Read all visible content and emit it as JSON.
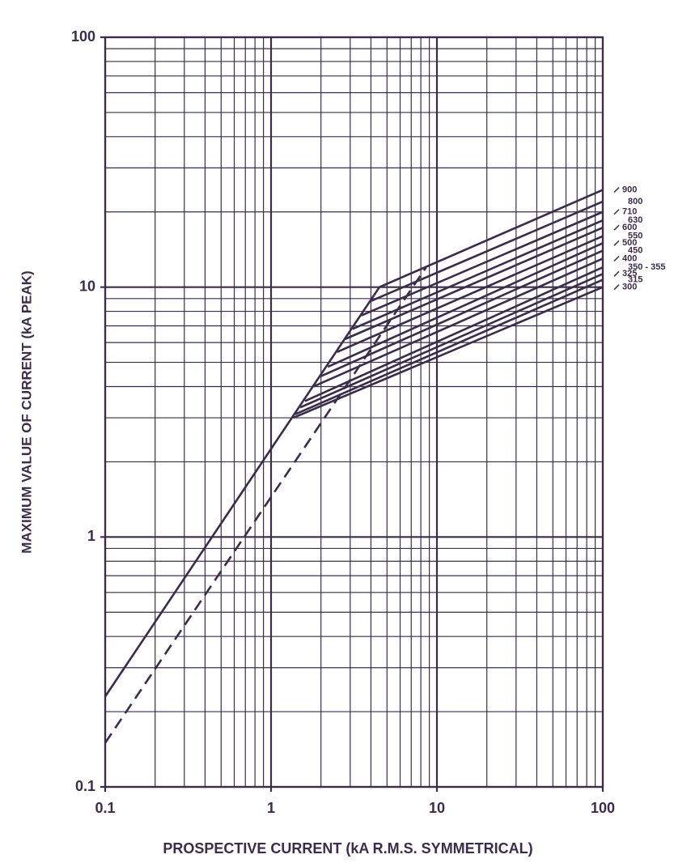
{
  "chart_data": {
    "type": "line",
    "x_label": "PROSPECTIVE CURRENT (kA  R.M.S.  SYMMETRICAL)",
    "y_label": "MAXIMUM VALUE OF CURRENT (kA PEAK)",
    "xlim": [
      0.1,
      100
    ],
    "ylim": [
      0.1,
      100
    ],
    "xticks": [
      0.1,
      1,
      10,
      100
    ],
    "yticks": [
      0.1,
      1,
      10,
      100
    ],
    "log_x": true,
    "log_y": true,
    "grid": true,
    "minor_grid": true,
    "color": "#3b2d4a",
    "series": [
      {
        "x": [
          0.1,
          4.5
        ],
        "values": [
          0.23,
          10
        ],
        "style": "solid"
      },
      {
        "x": [
          0.1,
          8.6
        ],
        "values": [
          0.15,
          12
        ],
        "style": "dashed"
      },
      {
        "name": "300",
        "x": [
          1.36,
          100
        ],
        "values": [
          3,
          10
        ],
        "style": "solid"
      },
      {
        "name": "315",
        "x": [
          1.4,
          100
        ],
        "values": [
          3.1,
          10.7
        ],
        "style": "solid"
      },
      {
        "name": "325",
        "x": [
          1.5,
          100
        ],
        "values": [
          3.3,
          11.3
        ],
        "style": "solid"
      },
      {
        "name": "350 - 355",
        "x": [
          1.6,
          100
        ],
        "values": [
          3.5,
          12
        ],
        "style": "solid"
      },
      {
        "name": "400",
        "x": [
          1.8,
          100
        ],
        "values": [
          4,
          13
        ],
        "style": "solid"
      },
      {
        "name": "450",
        "x": [
          2,
          100
        ],
        "values": [
          4.4,
          14
        ],
        "style": "solid"
      },
      {
        "name": "500",
        "x": [
          2.2,
          100
        ],
        "values": [
          4.8,
          15
        ],
        "style": "solid"
      },
      {
        "name": "550",
        "x": [
          2.5,
          100
        ],
        "values": [
          5.5,
          16
        ],
        "style": "solid"
      },
      {
        "name": "600",
        "x": [
          2.8,
          100
        ],
        "values": [
          6.2,
          17.3
        ],
        "style": "solid"
      },
      {
        "name": "630",
        "x": [
          3.1,
          100
        ],
        "values": [
          6.8,
          18.5
        ],
        "style": "solid"
      },
      {
        "name": "710",
        "x": [
          3.5,
          100
        ],
        "values": [
          7.7,
          20
        ],
        "style": "solid"
      },
      {
        "name": "800",
        "x": [
          4,
          100
        ],
        "values": [
          8.8,
          22
        ],
        "style": "solid"
      },
      {
        "name": "900",
        "x": [
          4.5,
          100
        ],
        "values": [
          10,
          24.5
        ],
        "style": "solid"
      }
    ]
  }
}
